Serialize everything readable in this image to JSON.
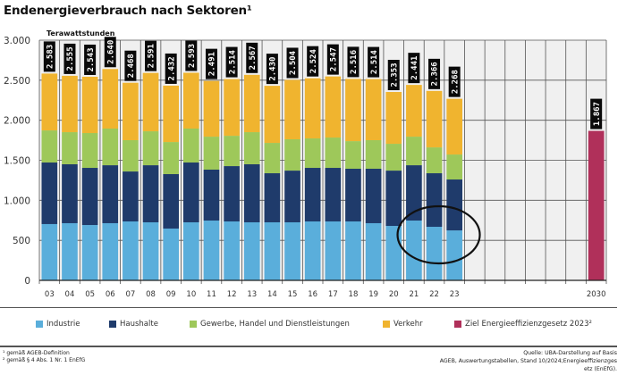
{
  "chart_data": {
    "type": "bar",
    "stacked": true,
    "title": "Endenergieverbrauch nach Sektoren¹",
    "ylabel": "Terawattstunden",
    "xlabel": "",
    "ylim": [
      0,
      3000
    ],
    "yticks": [
      0,
      500,
      1000,
      1500,
      2000,
      2500,
      3000
    ],
    "ytick_labels": [
      "0",
      "500",
      "1.000",
      "1.500",
      "2.000",
      "2.500",
      "3.000"
    ],
    "grid": true,
    "categories": [
      "03",
      "04",
      "05",
      "06",
      "07",
      "08",
      "09",
      "10",
      "11",
      "12",
      "13",
      "14",
      "15",
      "16",
      "17",
      "18",
      "19",
      "20",
      "21",
      "22",
      "23",
      "",
      "",
      "",
      "",
      "",
      "",
      "2030"
    ],
    "series": [
      {
        "name": "Industrie",
        "color": "#5aaedb",
        "values": [
          703,
          714,
          691,
          714,
          736,
          725,
          647,
          725,
          747,
          736,
          725,
          725,
          725,
          736,
          736,
          736,
          714,
          680,
          747,
          669,
          624,
          null,
          null,
          null,
          null,
          null,
          null,
          null
        ]
      },
      {
        "name": "Haushalte",
        "color": "#1f3b6b",
        "values": [
          769,
          736,
          714,
          724,
          624,
          713,
          680,
          747,
          636,
          691,
          725,
          613,
          646,
          669,
          669,
          658,
          680,
          691,
          691,
          669,
          636,
          null,
          null,
          null,
          null,
          null,
          null,
          null
        ]
      },
      {
        "name": "Gewerbe, Handel und Dienstleistungen",
        "color": "#9ec85a",
        "values": [
          401,
          401,
          435,
          458,
          391,
          424,
          401,
          424,
          412,
          379,
          401,
          379,
          391,
          368,
          379,
          345,
          357,
          335,
          357,
          323,
          312,
          null,
          null,
          null,
          null,
          null,
          null,
          null
        ]
      },
      {
        "name": "Verkehr",
        "color": "#f0b42f",
        "values": [
          710,
          704,
          703,
          744,
          717,
          729,
          704,
          697,
          696,
          708,
          716,
          713,
          742,
          751,
          763,
          777,
          763,
          647,
          646,
          705,
          696,
          null,
          null,
          null,
          null,
          null,
          null,
          null
        ]
      },
      {
        "name": "Ziel Energieeffizienzgesetz 2023²",
        "color": "#b0305a",
        "values": [
          null,
          null,
          null,
          null,
          null,
          null,
          null,
          null,
          null,
          null,
          null,
          null,
          null,
          null,
          null,
          null,
          null,
          null,
          null,
          null,
          null,
          null,
          null,
          null,
          null,
          null,
          null,
          1867
        ]
      }
    ],
    "totals": [
      2583,
      2555,
      2543,
      2640,
      2468,
      2591,
      2432,
      2593,
      2491,
      2514,
      2567,
      2430,
      2504,
      2524,
      2547,
      2516,
      2514,
      2353,
      2441,
      2366,
      2268,
      null,
      null,
      null,
      null,
      null,
      null,
      1867
    ],
    "total_labels": [
      "2.583",
      "2.555",
      "2.543",
      "2.640",
      "2.468",
      "2.591",
      "2.432",
      "2.593",
      "2.491",
      "2.514",
      "2.567",
      "2.430",
      "2.504",
      "2.524",
      "2.547",
      "2.516",
      "2.514",
      "2.353",
      "2.441",
      "2.366",
      "2.268",
      null,
      null,
      null,
      null,
      null,
      null,
      "1.867"
    ],
    "annotations": [
      {
        "type": "ellipse",
        "target": "Industrie 2021-2023"
      }
    ],
    "legend_position": "bottom"
  },
  "legend": [
    {
      "label": "Industrie",
      "color": "#5aaedb"
    },
    {
      "label": "Haushalte",
      "color": "#1f3b6b"
    },
    {
      "label": "Gewerbe, Handel und Dienstleistungen",
      "color": "#9ec85a"
    },
    {
      "label": "Verkehr",
      "color": "#f0b42f"
    },
    {
      "label": "Ziel Energieeffizienzgesetz 2023²",
      "color": "#b0305a"
    }
  ],
  "footnotes": [
    "¹ gemäß AGEB-Definition",
    "² gemäß § 4 Abs. 1 Nr. 1 EnEfG"
  ],
  "source": [
    "Quelle: UBA-Darstellung auf Basis",
    "AGEB, Auswertungstabellen, Stand 10/2024;Energieeffizienzges",
    "etz (EnEfG)."
  ]
}
